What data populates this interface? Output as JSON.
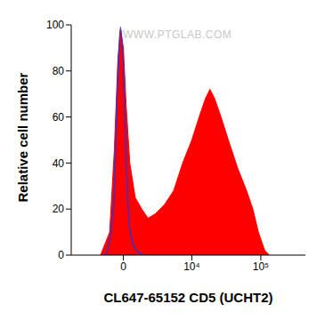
{
  "chart_data": {
    "type": "area",
    "x_label": "CL647-65152 CD5 (UCHT2)",
    "y_label": "Relative cell number",
    "annotations": [
      "WWW.PTGLAB.COM"
    ],
    "xlim": [
      -5700,
      440000
    ],
    "ylim": [
      0,
      100
    ],
    "xticks": [
      0,
      {
        "value": 10000,
        "label": "10⁴"
      },
      {
        "value": 100000,
        "label": "10⁵"
      }
    ],
    "yticks": [
      0,
      20,
      40,
      60,
      80,
      100
    ],
    "grid": false,
    "series": [
      {
        "type": "area",
        "color": "#ff0000",
        "x": [
          -1730,
          -980,
          -640,
          -380,
          -190,
          0,
          190,
          445,
          840,
          1350,
          1900,
          2670,
          3830,
          5330,
          7320,
          10000,
          12800,
          15800,
          18400,
          21500,
          26600,
          34000,
          46000,
          62200,
          76800,
          92100,
          114000,
          133000
        ],
        "values": [
          0,
          10,
          45,
          85,
          98,
          90,
          65,
          40,
          25,
          20,
          16,
          18,
          22,
          28,
          40,
          50,
          60,
          68,
          72,
          68,
          60,
          50,
          38,
          28,
          20,
          10,
          2,
          0
        ]
      },
      {
        "type": "line",
        "color": "#3333cc",
        "x": [
          -1300,
          -700,
          -400,
          -200,
          0,
          200,
          450,
          900,
          1500
        ],
        "values": [
          0,
          20,
          75,
          99,
          80,
          40,
          12,
          2,
          0
        ]
      }
    ]
  }
}
